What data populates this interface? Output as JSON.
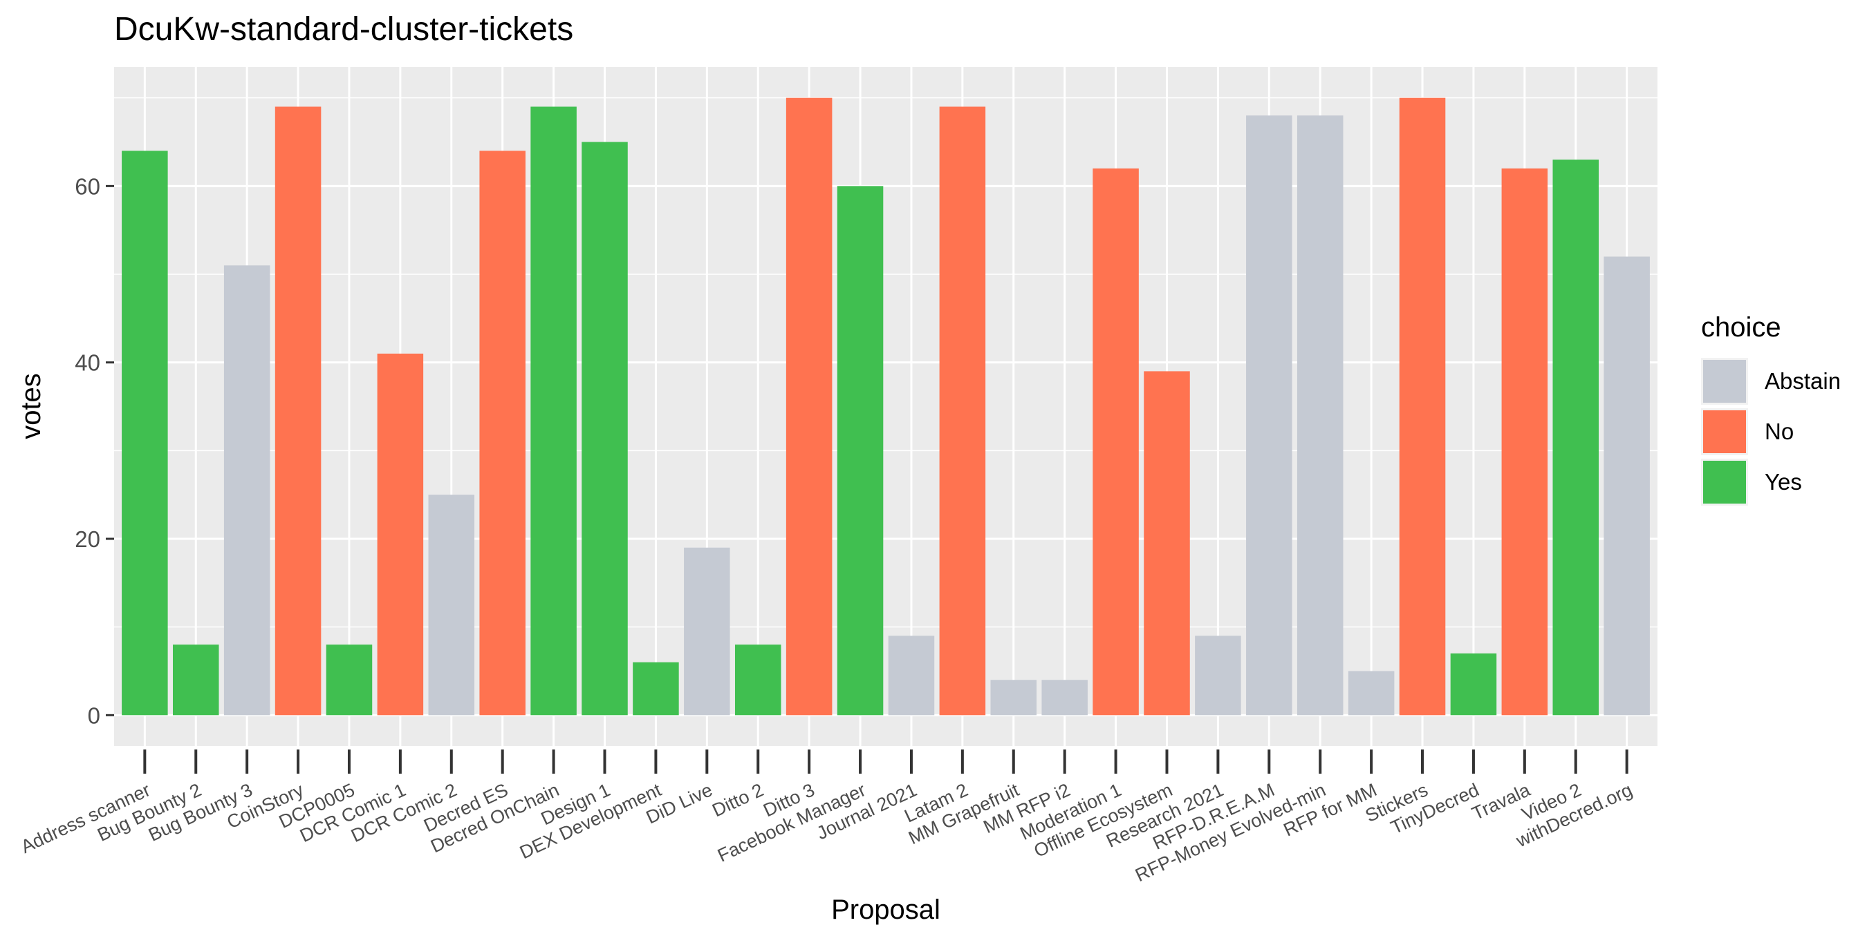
{
  "chart_data": {
    "type": "bar",
    "title": "DcuKw-standard-cluster-tickets",
    "xlabel": "Proposal",
    "ylabel": "votes",
    "ylim": [
      -3.5,
      73.5
    ],
    "yticks": [
      0,
      20,
      40,
      60
    ],
    "grid": true,
    "legend": {
      "title": "choice",
      "position": "right",
      "entries": [
        {
          "label": "Abstain",
          "color": "#c5cad3"
        },
        {
          "label": "No",
          "color": "#ff7350"
        },
        {
          "label": "Yes",
          "color": "#40bf50"
        }
      ]
    },
    "categories": [
      "Address scanner",
      "Bug Bounty 2",
      "Bug Bounty 3",
      "CoinStory",
      "DCP0005",
      "DCR Comic 1",
      "DCR Comic 2",
      "Decred ES",
      "Decred OnChain",
      "Design 1",
      "DEX Development",
      "DiD Live",
      "Ditto 2",
      "Ditto 3",
      "Facebook Manager",
      "Journal 2021",
      "Latam 2",
      "MM Grapefruit",
      "MM RFP i2",
      "Moderation 1",
      "Offline Ecosystem",
      "Research 2021",
      "RFP-D.R.E.A.M",
      "RFP-Money Evolved-min",
      "RFP for MM",
      "Stickers",
      "TinyDecred",
      "Travala",
      "Video 2",
      "withDecred.org"
    ],
    "values": [
      64,
      8,
      51,
      69,
      8,
      41,
      25,
      64,
      69,
      65,
      6,
      19,
      8,
      70,
      60,
      9,
      69,
      4,
      4,
      62,
      39,
      9,
      68,
      68,
      5,
      70,
      7,
      62,
      63,
      52
    ],
    "choices": [
      "Yes",
      "Yes",
      "Abstain",
      "No",
      "Yes",
      "No",
      "Abstain",
      "No",
      "Yes",
      "Yes",
      "Yes",
      "Abstain",
      "Yes",
      "No",
      "Yes",
      "Abstain",
      "No",
      "Abstain",
      "Abstain",
      "No",
      "No",
      "Abstain",
      "Abstain",
      "Abstain",
      "Abstain",
      "No",
      "Yes",
      "No",
      "Yes",
      "Abstain"
    ]
  }
}
